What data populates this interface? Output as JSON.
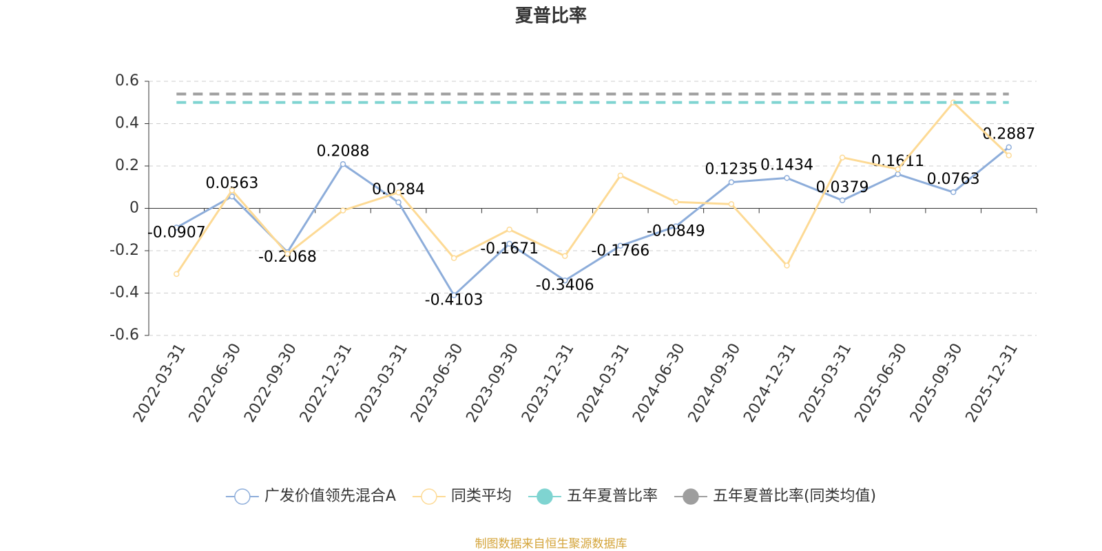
{
  "chart_data": {
    "type": "line",
    "title": "夏普比率",
    "categories": [
      "2022-03-31",
      "2022-06-30",
      "2022-09-30",
      "2022-12-31",
      "2023-03-31",
      "2023-06-30",
      "2023-09-30",
      "2023-12-31",
      "2024-03-31",
      "2024-06-30",
      "2024-09-30",
      "2024-12-31",
      "2025-03-31",
      "2025-06-30",
      "2025-09-30",
      "2025-12-31"
    ],
    "series": [
      {
        "name": "广发价值领先混合A",
        "color": "#8dadda",
        "marker": "hollow",
        "labels": true,
        "values": [
          -0.0907,
          0.0563,
          -0.2068,
          0.2088,
          0.0284,
          -0.4103,
          -0.1671,
          -0.3406,
          -0.1766,
          -0.0849,
          0.1235,
          0.1434,
          0.0379,
          0.1611,
          0.0763,
          0.2887
        ]
      },
      {
        "name": "同类平均",
        "color": "#fdda95",
        "marker": "hollow",
        "values": [
          -0.31,
          0.085,
          -0.215,
          -0.01,
          0.075,
          -0.235,
          -0.1,
          -0.225,
          0.155,
          0.03,
          0.02,
          -0.27,
          0.24,
          0.185,
          0.5,
          0.25
        ]
      },
      {
        "name": "五年夏普比率",
        "color": "#7fd4d1",
        "marker": "filled",
        "dashed": true,
        "values": [
          0.5,
          0.5,
          0.5,
          0.5,
          0.5,
          0.5,
          0.5,
          0.5,
          0.5,
          0.5,
          0.5,
          0.5,
          0.5,
          0.5,
          0.5,
          0.5
        ]
      },
      {
        "name": "五年夏普比率(同类均值)",
        "color": "#9e9e9e",
        "marker": "filled",
        "dashed": true,
        "values": [
          0.54,
          0.54,
          0.54,
          0.54,
          0.54,
          0.54,
          0.54,
          0.54,
          0.54,
          0.54,
          0.54,
          0.54,
          0.54,
          0.54,
          0.54,
          0.54
        ]
      }
    ],
    "ylim": [
      -0.6,
      0.6
    ],
    "yticks": [
      -0.6,
      -0.4,
      -0.2,
      0,
      0.2,
      0.4,
      0.6
    ],
    "grid": true,
    "source": "制图数据来自恒生聚源数据库"
  }
}
